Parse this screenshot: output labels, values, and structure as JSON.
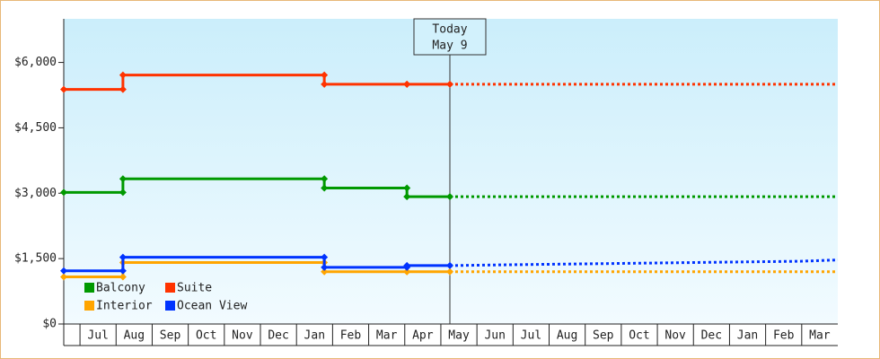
{
  "chart_data": {
    "type": "step-line",
    "categories": [
      null,
      "Jul",
      "Aug",
      "Sep",
      "Oct",
      "Nov",
      "Dec",
      "Jan",
      "Feb",
      "Mar",
      "Apr",
      "May",
      "Jun",
      "Jul",
      "Aug",
      "Sep",
      "Oct",
      "Nov",
      "Dec",
      "Jan",
      "Feb",
      "Mar"
    ],
    "xlim": [
      -0.45,
      21
    ],
    "ylim": [
      0,
      7000
    ],
    "yticks": [
      {
        "value": 0,
        "label": "$0"
      },
      {
        "value": 1500,
        "label": "$1,500"
      },
      {
        "value": 3000,
        "label": "$3,000"
      },
      {
        "value": 4500,
        "label": "$4,500"
      },
      {
        "value": 6000,
        "label": "$6,000"
      }
    ],
    "x": [
      -0.45,
      1.19,
      1.19,
      6.77,
      6.77,
      9.06,
      9.06,
      10.25
    ],
    "forecast_x": [
      10.25,
      12,
      14,
      16,
      18,
      20,
      21
    ],
    "series": [
      {
        "name": "Balcony",
        "color": "#009900",
        "values": [
          3020,
          3020,
          3330,
          3330,
          3120,
          3120,
          2920,
          2920
        ],
        "forecast_values": [
          2920,
          2920,
          2920,
          2920,
          2920,
          2920,
          2920
        ]
      },
      {
        "name": "Suite",
        "color": "#ff3300",
        "values": [
          5380,
          5380,
          5710,
          5710,
          5500,
          5500,
          5500,
          5500
        ],
        "forecast_values": [
          5500,
          5500,
          5500,
          5500,
          5500,
          5500,
          5500
        ]
      },
      {
        "name": "Interior",
        "color": "#ffa500",
        "values": [
          1080,
          1080,
          1410,
          1410,
          1200,
          1200,
          1200,
          1200
        ],
        "forecast_values": [
          1200,
          1200,
          1200,
          1200,
          1200,
          1200,
          1200
        ]
      },
      {
        "name": "Ocean View",
        "color": "#0033ff",
        "values": [
          1220,
          1220,
          1530,
          1530,
          1300,
          1300,
          1340,
          1340
        ],
        "forecast_values": [
          1340,
          1360,
          1380,
          1400,
          1420,
          1440,
          1470
        ]
      }
    ],
    "today": {
      "x": 10.25,
      "label": "Today",
      "date": "May 9"
    }
  }
}
